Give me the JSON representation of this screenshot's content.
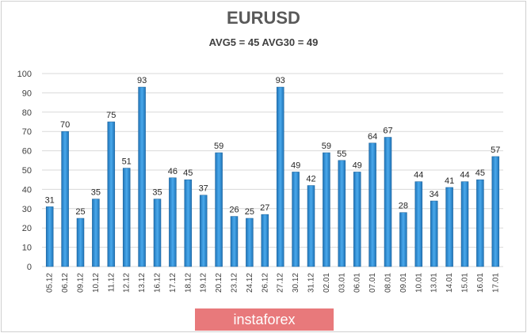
{
  "chart_data": {
    "type": "bar",
    "title": "EURUSD",
    "subtitle": "AVG5 = 45 AVG30 = 49",
    "categories": [
      "05.12",
      "06.12",
      "09.12",
      "10.12",
      "11.12",
      "12.12",
      "13.12",
      "16.12",
      "17.12",
      "18.12",
      "19.12",
      "20.12",
      "23.12",
      "24.12",
      "26.12",
      "27.12",
      "30.12",
      "31.12",
      "02.01",
      "03.01",
      "06.01",
      "07.01",
      "08.01",
      "09.01",
      "10.01",
      "13.01",
      "14.01",
      "15.01",
      "16.01",
      "17.01"
    ],
    "values": [
      31,
      70,
      25,
      35,
      75,
      51,
      93,
      35,
      46,
      45,
      37,
      59,
      26,
      25,
      27,
      93,
      49,
      42,
      59,
      55,
      49,
      64,
      67,
      28,
      44,
      34,
      41,
      44,
      45,
      57
    ],
    "ylim": [
      0,
      100
    ],
    "yticks": [
      0,
      10,
      20,
      30,
      40,
      50,
      60,
      70,
      80,
      90,
      100
    ],
    "grid": true,
    "bar_color": "#2e8fd6",
    "grid_color": "#d9d9d9"
  },
  "watermark": "instaforex",
  "watermark_color": "#e8797b"
}
